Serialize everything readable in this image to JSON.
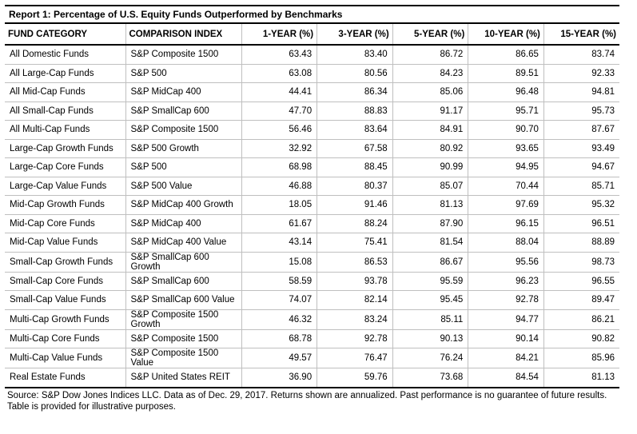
{
  "title": "Report 1: Percentage of U.S. Equity Funds Outperformed by Benchmarks",
  "columns": [
    "FUND CATEGORY",
    "COMPARISON INDEX",
    "1-YEAR (%)",
    "3-YEAR (%)",
    "5-YEAR (%)",
    "10-YEAR (%)",
    "15-YEAR (%)"
  ],
  "rows": [
    {
      "category": "All Domestic Funds",
      "index": "S&P Composite 1500",
      "y1": "63.43",
      "y3": "83.40",
      "y5": "86.72",
      "y10": "86.65",
      "y15": "83.74"
    },
    {
      "category": "All Large-Cap Funds",
      "index": "S&P 500",
      "y1": "63.08",
      "y3": "80.56",
      "y5": "84.23",
      "y10": "89.51",
      "y15": "92.33"
    },
    {
      "category": "All Mid-Cap Funds",
      "index": "S&P MidCap 400",
      "y1": "44.41",
      "y3": "86.34",
      "y5": "85.06",
      "y10": "96.48",
      "y15": "94.81"
    },
    {
      "category": "All Small-Cap Funds",
      "index": "S&P SmallCap 600",
      "y1": "47.70",
      "y3": "88.83",
      "y5": "91.17",
      "y10": "95.71",
      "y15": "95.73"
    },
    {
      "category": "All Multi-Cap Funds",
      "index": "S&P Composite 1500",
      "y1": "56.46",
      "y3": "83.64",
      "y5": "84.91",
      "y10": "90.70",
      "y15": "87.67"
    },
    {
      "category": "Large-Cap Growth Funds",
      "index": "S&P 500 Growth",
      "y1": "32.92",
      "y3": "67.58",
      "y5": "80.92",
      "y10": "93.65",
      "y15": "93.49"
    },
    {
      "category": "Large-Cap Core Funds",
      "index": "S&P 500",
      "y1": "68.98",
      "y3": "88.45",
      "y5": "90.99",
      "y10": "94.95",
      "y15": "94.67"
    },
    {
      "category": "Large-Cap Value Funds",
      "index": "S&P 500 Value",
      "y1": "46.88",
      "y3": "80.37",
      "y5": "85.07",
      "y10": "70.44",
      "y15": "85.71"
    },
    {
      "category": "Mid-Cap Growth Funds",
      "index": "S&P MidCap 400 Growth",
      "y1": "18.05",
      "y3": "91.46",
      "y5": "81.13",
      "y10": "97.69",
      "y15": "95.32"
    },
    {
      "category": "Mid-Cap Core Funds",
      "index": "S&P MidCap 400",
      "y1": "61.67",
      "y3": "88.24",
      "y5": "87.90",
      "y10": "96.15",
      "y15": "96.51"
    },
    {
      "category": "Mid-Cap Value Funds",
      "index": "S&P MidCap 400 Value",
      "y1": "43.14",
      "y3": "75.41",
      "y5": "81.54",
      "y10": "88.04",
      "y15": "88.89"
    },
    {
      "category": "Small-Cap Growth Funds",
      "index": "S&P SmallCap 600 Growth",
      "y1": "15.08",
      "y3": "86.53",
      "y5": "86.67",
      "y10": "95.56",
      "y15": "98.73"
    },
    {
      "category": "Small-Cap Core Funds",
      "index": "S&P SmallCap 600",
      "y1": "58.59",
      "y3": "93.78",
      "y5": "95.59",
      "y10": "96.23",
      "y15": "96.55"
    },
    {
      "category": "Small-Cap Value Funds",
      "index": "S&P SmallCap 600 Value",
      "y1": "74.07",
      "y3": "82.14",
      "y5": "95.45",
      "y10": "92.78",
      "y15": "89.47"
    },
    {
      "category": "Multi-Cap Growth Funds",
      "index": "S&P Composite 1500 Growth",
      "y1": "46.32",
      "y3": "83.24",
      "y5": "85.11",
      "y10": "94.77",
      "y15": "86.21"
    },
    {
      "category": "Multi-Cap Core Funds",
      "index": "S&P Composite 1500",
      "y1": "68.78",
      "y3": "92.78",
      "y5": "90.13",
      "y10": "90.14",
      "y15": "90.82"
    },
    {
      "category": "Multi-Cap Value Funds",
      "index": "S&P Composite 1500 Value",
      "y1": "49.57",
      "y3": "76.47",
      "y5": "76.24",
      "y10": "84.21",
      "y15": "85.96"
    },
    {
      "category": "Real Estate Funds",
      "index": "S&P United States REIT",
      "y1": "36.90",
      "y3": "59.76",
      "y5": "73.68",
      "y10": "84.54",
      "y15": "81.13"
    }
  ],
  "footer": "Source: S&P Dow Jones Indices LLC.  Data as of Dec. 29, 2017.  Returns shown are annualized.  Past performance is no guarantee of future results.  Table is provided for illustrative purposes."
}
